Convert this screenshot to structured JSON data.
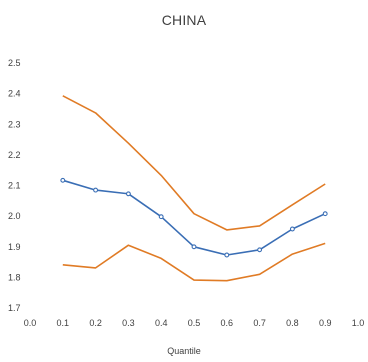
{
  "chart_data": {
    "type": "line",
    "title": "CHINA",
    "xlabel": "Quantile",
    "ylabel": "",
    "xlim": [
      0.0,
      1.0
    ],
    "ylim": [
      1.7,
      2.5
    ],
    "xticks": [
      "0.0",
      "0.1",
      "0.2",
      "0.3",
      "0.4",
      "0.5",
      "0.6",
      "0.7",
      "0.8",
      "0.9",
      "1.0"
    ],
    "yticks": [
      "1.7",
      "1.8",
      "1.9",
      "2.0",
      "2.1",
      "2.2",
      "2.3",
      "2.4",
      "2.5"
    ],
    "grid": false,
    "legend": "none",
    "x": [
      0.1,
      0.2,
      0.3,
      0.4,
      0.5,
      0.6,
      0.7,
      0.8,
      0.9
    ],
    "series": [
      {
        "role": "estimate",
        "color": "#3A6EB5",
        "markers": true,
        "values": [
          2.117,
          2.085,
          2.073,
          1.998,
          1.9,
          1.873,
          1.89,
          1.958,
          2.008
        ]
      },
      {
        "role": "upper bound",
        "color": "#E07B25",
        "markers": false,
        "values": [
          2.393,
          2.337,
          2.238,
          2.133,
          2.008,
          1.955,
          1.968,
          2.037,
          2.105
        ]
      },
      {
        "role": "lower bound",
        "color": "#E07B25",
        "markers": false,
        "values": [
          1.841,
          1.831,
          1.905,
          1.862,
          1.791,
          1.789,
          1.81,
          1.876,
          1.911
        ]
      }
    ]
  }
}
